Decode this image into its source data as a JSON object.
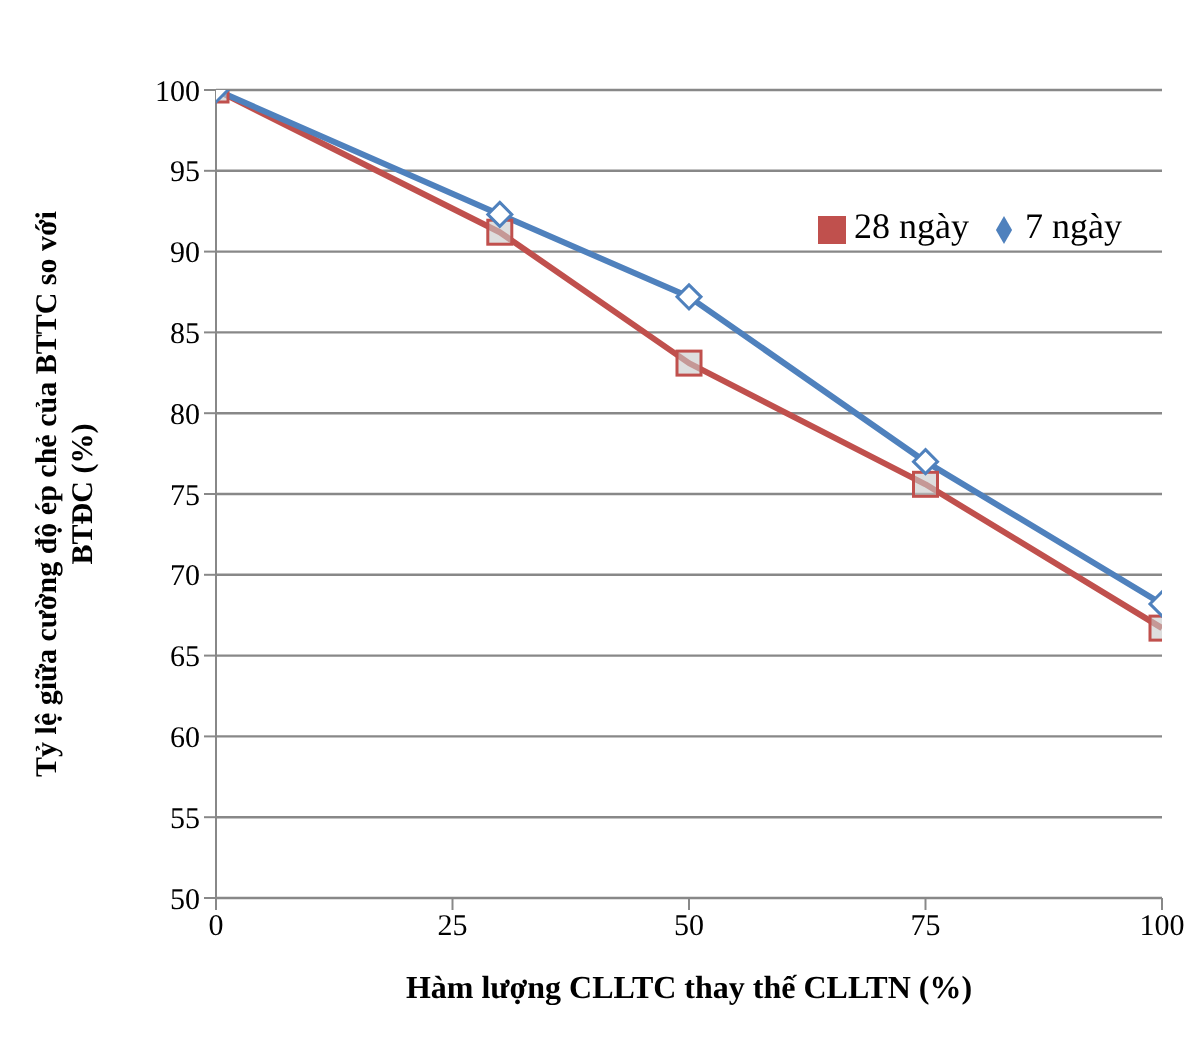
{
  "chart_data": {
    "type": "line",
    "xlabel": "Hàm lượng CLLTC thay thế CLLTN (%)",
    "ylabel": "Tỷ lệ giữa cường độ ép chẻ của BTTC so với BTĐC (%)",
    "x": [
      0,
      30,
      50,
      75,
      100
    ],
    "series": [
      {
        "name": "28 ngày",
        "color": "#c0504d",
        "marker": "square",
        "values": [
          100,
          91.2,
          83.1,
          75.6,
          66.7
        ]
      },
      {
        "name": "7 ngày",
        "color": "#4f81bd",
        "marker": "diamond",
        "values": [
          100,
          92.3,
          87.2,
          77.0,
          68.2
        ]
      }
    ],
    "xlim": [
      0,
      100
    ],
    "xticks": [
      0,
      25,
      50,
      75,
      100
    ],
    "ylim": [
      50,
      100
    ],
    "yticks": [
      50,
      55,
      60,
      65,
      70,
      75,
      80,
      85,
      90,
      95,
      100
    ],
    "grid": "y",
    "legend": "top right"
  }
}
